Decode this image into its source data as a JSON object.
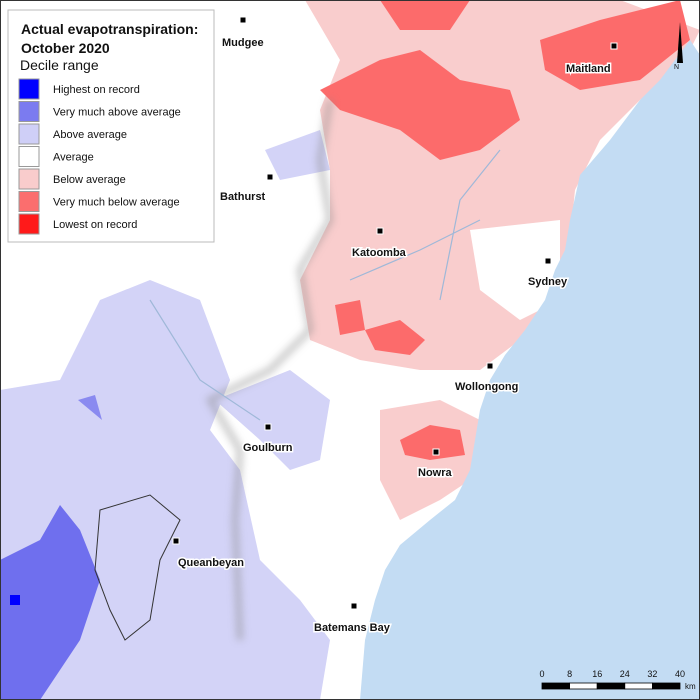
{
  "legend": {
    "title": [
      "Actual evapotranspiration:",
      "October 2020"
    ],
    "subtitle": "Decile range",
    "items": [
      {
        "label": "Highest on record",
        "color": "#0000ff"
      },
      {
        "label": "Very much above average",
        "color": "#7b7bf0"
      },
      {
        "label": "Above average",
        "color": "#cfcff7"
      },
      {
        "label": "Average",
        "color": "#ffffff"
      },
      {
        "label": "Below average",
        "color": "#f9cccc"
      },
      {
        "label": "Very much below average",
        "color": "#fb6e6e"
      },
      {
        "label": "Lowest on record",
        "color": "#ff1a1a"
      }
    ]
  },
  "places": [
    "Mudgee",
    "Maitland",
    "Bathurst",
    "Katoomba",
    "Sydney",
    "Wollongong",
    "Goulburn",
    "Nowra",
    "Queanbeyan",
    "Batemans Bay"
  ],
  "scale": {
    "ticks": [
      0,
      8,
      16,
      24,
      32,
      40
    ],
    "unit": "km"
  },
  "north": "N"
}
